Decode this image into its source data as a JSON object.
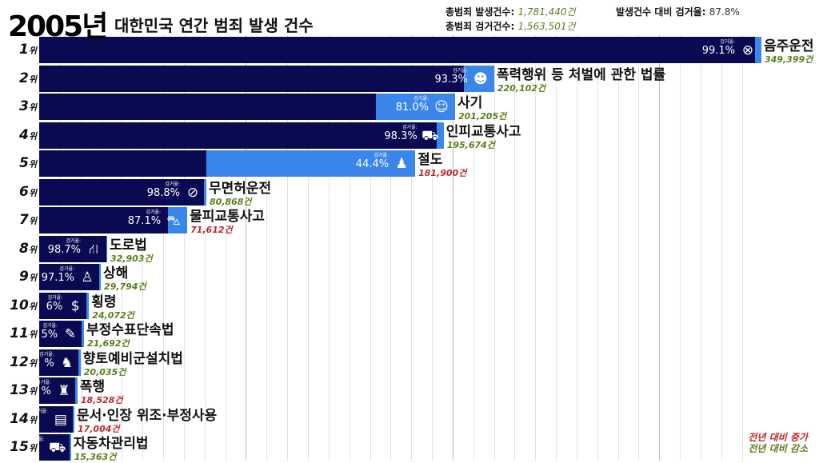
{
  "header": {
    "year": "2005년",
    "title": "대한민국 연간 범죄 발생 건수",
    "total_occurrence_label": "총범죄 발생건수:",
    "total_occurrence_value": "1,781,440건",
    "total_arrest_label": "총범죄 검거건수:",
    "total_arrest_value": "1,563,501건",
    "arrest_ratio_label": "발생건수 대비 검거율:",
    "arrest_ratio_value": "87.8%"
  },
  "legend": {
    "increase": "전년 대비 증가",
    "decrease": "전년 대비 감소"
  },
  "colors": {
    "arrested": "#0a0a52",
    "total": "#3b86ea",
    "increase": "#c0282a",
    "decrease": "#5c7d1c",
    "grid": "#e2e2e2",
    "grid_major": "#bdbdbd"
  },
  "chart_data": {
    "type": "bar",
    "orientation": "horizontal",
    "xlim": [
      0,
      349399
    ],
    "grid": true,
    "grid_step": 10000,
    "arrest_rate_label": "검거율:",
    "rank_suffix": "위",
    "rows": [
      {
        "rank": "1",
        "name": "음주운전",
        "count": 349399,
        "count_label": "349,399건",
        "rate": 99.1,
        "rate_label": "99.1%",
        "trend": "decrease",
        "icon": "steering-wheel-icon"
      },
      {
        "rank": "2",
        "name": "폭력행위 등 처벌에 관한 법률",
        "count": 220102,
        "count_label": "220,102건",
        "rate": 93.3,
        "rate_label": "93.3%",
        "trend": "decrease",
        "icon": "group-icon"
      },
      {
        "rank": "3",
        "name": "사기",
        "count": 201205,
        "count_label": "201,205건",
        "rate": 81.0,
        "rate_label": "81.0%",
        "trend": "decrease",
        "icon": "grinning-face-icon"
      },
      {
        "rank": "4",
        "name": "인피교통사고",
        "count": 195674,
        "count_label": "195,674건",
        "rate": 98.3,
        "rate_label": "98.3%",
        "trend": "decrease",
        "icon": "car-pedestrian-icon"
      },
      {
        "rank": "5",
        "name": "절도",
        "count": 181900,
        "count_label": "181,900건",
        "rate": 44.4,
        "rate_label": "44.4%",
        "trend": "increase",
        "icon": "thief-icon"
      },
      {
        "rank": "6",
        "name": "무면허운전",
        "count": 80868,
        "count_label": "80,868건",
        "rate": 98.8,
        "rate_label": "98.8%",
        "trend": "decrease",
        "icon": "no-license-icon"
      },
      {
        "rank": "7",
        "name": "물피교통사고",
        "count": 71612,
        "count_label": "71,612건",
        "rate": 87.1,
        "rate_label": "87.1%",
        "trend": "increase",
        "icon": "car-crash-icon"
      },
      {
        "rank": "8",
        "name": "도로법",
        "count": 32903,
        "count_label": "32,903건",
        "rate": 98.7,
        "rate_label": "98.7%",
        "trend": "decrease",
        "icon": "road-icon"
      },
      {
        "rank": "9",
        "name": "상해",
        "count": 29794,
        "count_label": "29,794건",
        "rate": 97.1,
        "rate_label": "97.1%",
        "trend": "decrease",
        "icon": "injured-person-icon"
      },
      {
        "rank": "10",
        "name": "횡령",
        "count": 24072,
        "count_label": "24,072건",
        "rate": null,
        "rate_label": "6%",
        "trend": "decrease",
        "icon": "money-bag-icon"
      },
      {
        "rank": "11",
        "name": "부정수표단속법",
        "count": 21692,
        "count_label": "21,692건",
        "rate": null,
        "rate_label": "5%",
        "trend": "decrease",
        "icon": "check-pen-icon"
      },
      {
        "rank": "12",
        "name": "향토예비군설치법",
        "count": 20035,
        "count_label": "20,035건",
        "rate": null,
        "rate_label": "%",
        "trend": "decrease",
        "icon": "soldier-icon"
      },
      {
        "rank": "13",
        "name": "폭행",
        "count": 18528,
        "count_label": "18,528건",
        "rate": null,
        "rate_label": "%",
        "trend": "increase",
        "icon": "fighting-icon"
      },
      {
        "rank": "14",
        "name": "문서·인장 위조·부정사용",
        "count": 17004,
        "count_label": "17,004건",
        "rate": null,
        "rate_label": "",
        "trend": "increase",
        "icon": "document-icon"
      },
      {
        "rank": "15",
        "name": "자동차관리법",
        "count": 15363,
        "count_label": "15,363건",
        "rate": null,
        "rate_label": "",
        "trend": "decrease",
        "icon": "vehicle-icon"
      }
    ]
  }
}
